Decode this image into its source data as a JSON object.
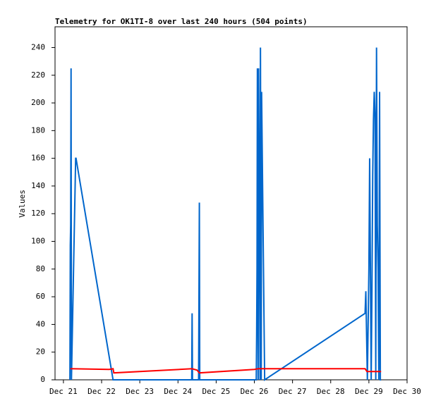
{
  "chart_data": {
    "type": "line",
    "title": "Telemetry for OK1TI-8 over last 240 hours (504 points)",
    "y_label": "Values",
    "xlim": [
      20.78,
      30
    ],
    "ylim": [
      0,
      255
    ],
    "xticks": [
      {
        "value": 21,
        "label": "Dec 21"
      },
      {
        "value": 22,
        "label": "Dec 22"
      },
      {
        "value": 23,
        "label": "Dec 23"
      },
      {
        "value": 24,
        "label": "Dec 24"
      },
      {
        "value": 25,
        "label": "Dec 25"
      },
      {
        "value": 26,
        "label": "Dec 26"
      },
      {
        "value": 27,
        "label": "Dec 27"
      },
      {
        "value": 28,
        "label": "Dec 28"
      },
      {
        "value": 29,
        "label": "Dec 29"
      },
      {
        "value": 30,
        "label": "Dec 30"
      }
    ],
    "yticks": [
      0,
      20,
      40,
      60,
      80,
      100,
      120,
      140,
      160,
      180,
      200,
      220,
      240
    ],
    "grid": false,
    "series": [
      {
        "color": "#0066cc",
        "x": [
          21.17,
          21.18,
          21.19,
          21.2,
          21.21,
          21.31,
          21.32,
          21.33,
          22.3,
          24.36,
          24.37,
          24.38,
          24.54,
          24.55,
          24.56,
          24.57,
          26.05,
          26.06,
          26.07,
          26.08,
          26.1,
          26.11,
          26.13,
          26.15,
          26.16,
          26.18,
          26.19,
          26.27,
          28.9,
          28.92,
          28.96,
          29.0,
          29.02,
          29.06,
          29.08,
          29.1,
          29.12,
          29.14,
          29.16,
          29.18,
          29.2,
          29.22,
          29.24,
          29.26,
          29.28,
          29.3,
          29.32
        ],
        "values": [
          0,
          97,
          112,
          225,
          0,
          145,
          160,
          160,
          0,
          0,
          48,
          0,
          0,
          64,
          128,
          0,
          0,
          32,
          80,
          225,
          0,
          225,
          128,
          0,
          240,
          0,
          208,
          0,
          48,
          64,
          0,
          80,
          160,
          0,
          64,
          148,
          188,
          208,
          192,
          0,
          240,
          112,
          80,
          0,
          208,
          0,
          0
        ]
      },
      {
        "color": "#ff0000",
        "x": [
          21.18,
          22.2,
          22.3,
          22.32,
          24.37,
          24.5,
          24.56,
          26.0,
          26.1,
          28.9,
          28.95,
          29.32
        ],
        "values": [
          8,
          7.5,
          8,
          5,
          8,
          7,
          5,
          7.5,
          8,
          8,
          6,
          6
        ]
      }
    ]
  }
}
